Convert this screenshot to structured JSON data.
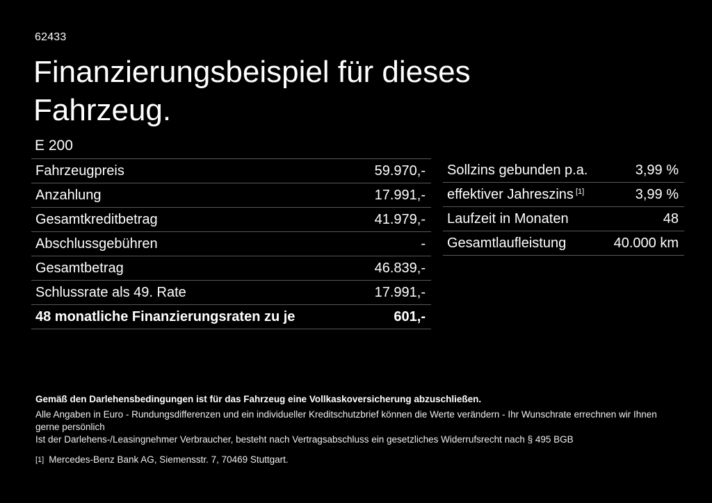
{
  "header": {
    "vehicle_id": "62433",
    "title": "Finanzierungsbeispiel für dieses Fahrzeug.",
    "model": "E 200"
  },
  "finance_table": {
    "rows": [
      {
        "label": "Fahrzeugpreis",
        "value": "59.970,-"
      },
      {
        "label": "Anzahlung",
        "value": "17.991,-"
      },
      {
        "label": "Gesamtkreditbetrag",
        "value": "41.979,-"
      },
      {
        "label": "Abschlussgebühren",
        "value": "-"
      },
      {
        "label": "Gesamtbetrag",
        "value": "46.839,-"
      },
      {
        "label": "Schlussrate als 49. Rate",
        "value": "17.991,-"
      },
      {
        "label": "48 monatliche Finanzierungsraten zu je",
        "value": "601,-"
      }
    ]
  },
  "conditions_table": {
    "rows": [
      {
        "label": "Sollzins gebunden p.a.",
        "value": "3,99 %"
      },
      {
        "label": "effektiver Jahreszins",
        "label_sup": "[1]",
        "value": "3,99 %"
      },
      {
        "label": "Laufzeit in Monaten",
        "value": "48"
      },
      {
        "label": "Gesamtlaufleistung",
        "value": "40.000 km"
      }
    ]
  },
  "footer": {
    "insurance_note": "Gemäß den Darlehensbedingungen ist für das Fahrzeug eine Vollkaskoversicherung abzuschließen.",
    "disclaimer_line1": "Alle Angaben in Euro - Rundungsdifferenzen und ein individueller Kreditschutzbrief können die Werte verändern - Ihr Wunschrate errechnen wir Ihnen gerne persönlich",
    "disclaimer_line2": "Ist der Darlehens-/Leasingnehmer Verbraucher, besteht nach Vertragsabschluss ein gesetzliches Widerrufsrecht nach § 495 BGB",
    "footnote_marker": "[1]",
    "footnote_text": "Mercedes-Benz Bank AG, Siemensstr. 7, 70469 Stuttgart."
  },
  "colors": {
    "background": "#000000",
    "text": "#ffffff",
    "separator": "#5a5a5a"
  }
}
